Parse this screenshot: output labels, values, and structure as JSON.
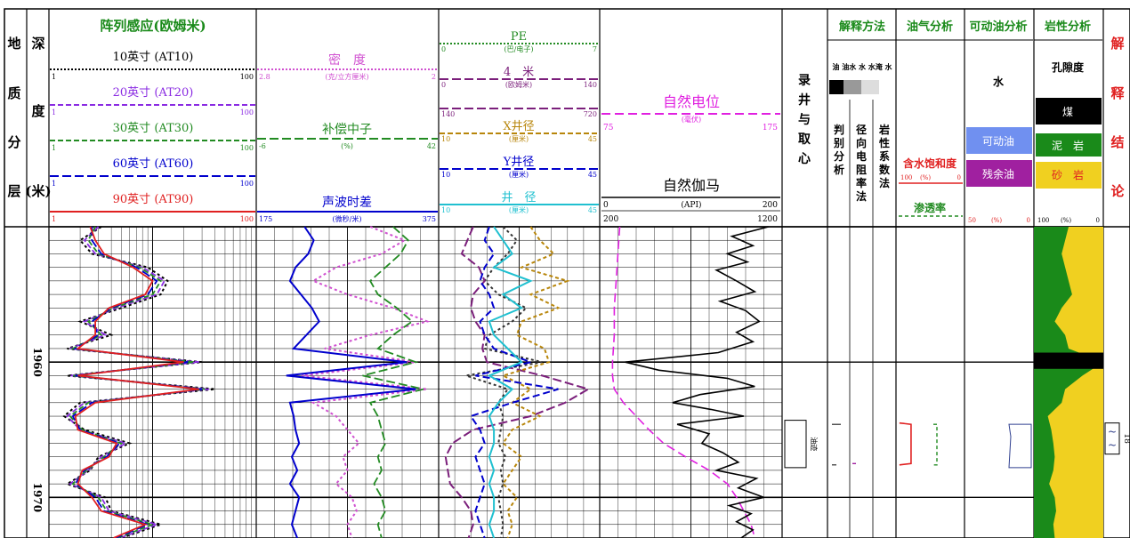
{
  "colors": {
    "at10": "#000000",
    "at20": "#8a2be2",
    "at30": "#228b22",
    "at60": "#0000cd",
    "at90": "#e02020",
    "density": "#d050d0",
    "neutron": "#228b22",
    "sonic": "#0000cd",
    "pe": "#228b22",
    "rt4": "#7b1f7b",
    "calx": "#b8860b",
    "caly": "#0000cd",
    "bit": "#20c0d0",
    "sp": "#e020e0",
    "gr": "#000000",
    "sand": "#f0d020",
    "shale": "#1a8a1a",
    "coal": "#000000",
    "movable": "#4060e0",
    "residual": "#a020a0",
    "water_sat": "#e02020"
  },
  "depth_track": {
    "header_geo": [
      "地",
      "质",
      "分",
      "层"
    ],
    "header_depth": [
      "深",
      "度",
      "(米)"
    ],
    "depth_labels": [
      "1960",
      "1970"
    ]
  },
  "headers": {
    "induction_title": "阵列感应(欧姆米)",
    "curves": [
      {
        "label": "10英寸 (AT10)",
        "min": "1",
        "max": "100",
        "color_key": "at10",
        "dash": "2,2"
      },
      {
        "label": "20英寸 (AT20)",
        "min": "1",
        "max": "100",
        "color_key": "at20",
        "dash": "6,3"
      },
      {
        "label": "30英寸 (AT30)",
        "min": "1",
        "max": "100",
        "color_key": "at30",
        "dash": "6,3"
      },
      {
        "label": "60英寸 (AT60)",
        "min": "1",
        "max": "100",
        "color_key": "at60",
        "dash": "10,4"
      },
      {
        "label": "90英寸 (AT90)",
        "min": "1",
        "max": "100",
        "color_key": "at90",
        "dash": ""
      }
    ],
    "porosity": [
      {
        "label": "密　度",
        "unit": "(克/立方厘米)",
        "min": "2.8",
        "max": "2",
        "color_key": "density",
        "dash": "2,2"
      },
      {
        "label": "补偿中子",
        "unit": "(%)",
        "min": "-6",
        "max": "42",
        "color_key": "neutron",
        "dash": "10,4"
      },
      {
        "label": "声波时差",
        "unit": "(微秒/米)",
        "min": "175",
        "max": "375",
        "color_key": "sonic",
        "dash": ""
      }
    ],
    "mid": [
      {
        "label": "PE",
        "unit": "(巴/电子)",
        "min": "0",
        "max": "7",
        "color_key": "pe",
        "dash": "2,2"
      },
      {
        "label": "4　米",
        "unit": "(欧姆米)",
        "min": "0",
        "max": "140",
        "color_key": "rt4",
        "dash": "10,4"
      },
      {
        "label": "",
        "unit": "",
        "min": "140",
        "max": "720",
        "color_key": "rt4",
        "dash": "10,4"
      },
      {
        "label": "X井径",
        "unit": "(厘米)",
        "min": "10",
        "max": "45",
        "color_key": "calx",
        "dash": "6,3"
      },
      {
        "label": "Y井径",
        "unit": "(厘米)",
        "min": "10",
        "max": "45",
        "color_key": "caly",
        "dash": "10,4"
      },
      {
        "label": "井　径",
        "unit": "(厘米)",
        "min": "10",
        "max": "45",
        "color_key": "bit",
        "dash": ""
      }
    ],
    "sp": {
      "label": "自然电位",
      "unit": "(毫伏)",
      "min": "75",
      "max": "175"
    },
    "gr": {
      "label": "自然伽马",
      "unit": "(API)",
      "min": "0",
      "max": "200",
      "min2": "200",
      "max2": "1200"
    },
    "core": "录井与取心",
    "interp_method": "解释方法",
    "interp_fluids": "油 油水 水 水淹 水",
    "interp_cols": [
      "判别分析",
      "径向电阻率法",
      "岩性系数法"
    ],
    "oil_gas": "油气分析",
    "water_sat": "含水饱和度",
    "water_sat_scale": [
      "100",
      "(%)",
      "0"
    ],
    "perm": "渗透率",
    "movable_title": "可动油分析",
    "movable_water": "水",
    "movable_oil": "可动油",
    "residual_oil": "残余油",
    "movable_scale": [
      "50",
      "(%)",
      "0"
    ],
    "lith_title": "岩性分析",
    "porosity_label": "孔隙度",
    "coal": "煤",
    "shale": "泥　岩",
    "sand": "砂　岩",
    "lith_scale": [
      "100",
      "(%)",
      "0"
    ],
    "result_title": [
      "解",
      "释",
      "结",
      "论"
    ],
    "oil_show": "油迹",
    "result_number": "18"
  },
  "chart_data": {
    "type": "line",
    "x_label": "深度 (米)",
    "depth_range": [
      1950,
      1973
    ],
    "series": [
      {
        "name": "10英寸 (AT10)",
        "unit": "欧姆米",
        "log": true,
        "depth": [
          1950,
          1951,
          1952,
          1953,
          1954,
          1955,
          1956,
          1957,
          1958,
          1959,
          1960,
          1961,
          1962,
          1963,
          1964,
          1965,
          1966,
          1967,
          1968,
          1969,
          1970,
          1971,
          1972,
          1973
        ],
        "x": [
          3.2,
          2.0,
          2.6,
          9.0,
          14.0,
          12.0,
          5.0,
          2.0,
          4.0,
          1.5,
          30.0,
          1.5,
          40.0,
          2.0,
          1.4,
          2.2,
          6.0,
          3.0,
          2.5,
          1.5,
          3.5,
          4.0,
          12.0,
          5.0
        ]
      },
      {
        "name": "20英寸 (AT20)",
        "unit": "欧姆米",
        "log": true,
        "depth": [
          1950,
          1951,
          1952,
          1953,
          1954,
          1955,
          1956,
          1957,
          1958,
          1959,
          1960,
          1961,
          1962,
          1963,
          1964,
          1965,
          1966,
          1967,
          1968,
          1969,
          1970,
          1971,
          1972,
          1973
        ],
        "x": [
          3.0,
          2.2,
          2.8,
          8.0,
          13.0,
          11.0,
          4.5,
          2.2,
          3.5,
          1.6,
          28.0,
          1.6,
          35.0,
          2.2,
          1.5,
          2.0,
          5.5,
          3.2,
          2.4,
          1.6,
          3.2,
          3.8,
          11.0,
          4.8
        ]
      },
      {
        "name": "30英寸 (AT30)",
        "unit": "欧姆米",
        "log": true,
        "depth": [
          1950,
          1951,
          1952,
          1953,
          1954,
          1955,
          1956,
          1957,
          1958,
          1959,
          1960,
          1961,
          1962,
          1963,
          1964,
          1965,
          1966,
          1967,
          1968,
          1969,
          1970,
          1971,
          1972,
          1973
        ],
        "x": [
          2.8,
          2.4,
          3.0,
          7.5,
          12.0,
          10.0,
          4.2,
          2.4,
          3.2,
          1.7,
          25.0,
          1.7,
          32.0,
          2.4,
          1.6,
          2.1,
          5.0,
          3.4,
          2.3,
          1.7,
          3.0,
          3.6,
          10.0,
          4.6
        ]
      },
      {
        "name": "60英寸 (AT60)",
        "unit": "欧姆米",
        "log": true,
        "depth": [
          1950,
          1951,
          1952,
          1953,
          1954,
          1955,
          1956,
          1957,
          1958,
          1959,
          1960,
          1961,
          1962,
          1963,
          1964,
          1965,
          1966,
          1967,
          1968,
          1969,
          1970,
          1971,
          1972,
          1973
        ],
        "x": [
          2.6,
          2.6,
          3.2,
          7.0,
          11.0,
          9.0,
          4.0,
          2.6,
          3.0,
          1.8,
          22.0,
          1.8,
          30.0,
          2.6,
          1.7,
          2.0,
          4.8,
          3.6,
          2.2,
          1.8,
          2.8,
          3.4,
          9.0,
          4.4
        ]
      },
      {
        "name": "90英寸 (AT90)",
        "unit": "欧姆米",
        "log": true,
        "depth": [
          1950,
          1951,
          1952,
          1953,
          1954,
          1955,
          1956,
          1957,
          1958,
          1959,
          1960,
          1961,
          1962,
          1963,
          1964,
          1965,
          1966,
          1967,
          1968,
          1969,
          1970,
          1971,
          1972,
          1973
        ],
        "x": [
          2.5,
          2.8,
          3.4,
          6.5,
          10.0,
          8.5,
          3.8,
          2.8,
          2.8,
          1.9,
          20.0,
          1.9,
          28.0,
          2.8,
          1.8,
          1.9,
          4.5,
          3.8,
          2.1,
          1.9,
          2.6,
          3.2,
          8.5,
          4.2
        ]
      },
      {
        "name": "密度",
        "unit": "克/立方厘米",
        "depth": [
          1950,
          1951,
          1952,
          1953,
          1954,
          1955,
          1956,
          1957,
          1958,
          1959,
          1960,
          1961,
          1962,
          1963,
          1964,
          1965,
          1966,
          1967,
          1968,
          1969,
          1970,
          1971,
          1972,
          1973
        ],
        "x": [
          2.3,
          2.15,
          2.25,
          2.45,
          2.55,
          2.4,
          2.2,
          2.05,
          2.3,
          2.5,
          2.1,
          2.6,
          2.05,
          2.55,
          2.45,
          2.4,
          2.35,
          2.42,
          2.4,
          2.45,
          2.38,
          2.36,
          2.4,
          2.38
        ]
      },
      {
        "name": "补偿中子",
        "unit": "%",
        "depth": [
          1950,
          1951,
          1952,
          1953,
          1954,
          1955,
          1956,
          1957,
          1958,
          1959,
          1960,
          1961,
          1962,
          1963,
          1964,
          1965,
          1966,
          1967,
          1968,
          1969,
          1970,
          1971,
          1972,
          1973
        ],
        "x": [
          30,
          34,
          32,
          28,
          24,
          26,
          31,
          35,
          30,
          26,
          36,
          22,
          38,
          24,
          26,
          27,
          28,
          26,
          27,
          25,
          27,
          28,
          26,
          27
        ]
      },
      {
        "name": "声波时差",
        "unit": "微秒/米",
        "depth": [
          1950,
          1951,
          1952,
          1953,
          1954,
          1955,
          1956,
          1957,
          1958,
          1959,
          1960,
          1961,
          1962,
          1963,
          1964,
          1965,
          1966,
          1967,
          1968,
          1969,
          1970,
          1971,
          1972,
          1973
        ],
        "x": [
          228,
          238,
          232,
          218,
          212,
          224,
          236,
          244,
          230,
          216,
          340,
          208,
          350,
          212,
          216,
          218,
          222,
          214,
          220,
          212,
          222,
          218,
          214,
          220
        ]
      },
      {
        "name": "PE",
        "unit": "巴/电子",
        "depth": [
          1950,
          1951,
          1952,
          1953,
          1954,
          1955,
          1956,
          1957,
          1958,
          1959,
          1960,
          1961,
          1962,
          1963,
          1964,
          1965,
          1966,
          1967,
          1968,
          1969,
          1970,
          1971,
          1972,
          1973
        ],
        "x": [
          2.8,
          3.4,
          3.0,
          2.4,
          2.0,
          2.6,
          3.8,
          3.2,
          2.2,
          2.0,
          4.5,
          1.2,
          3.0,
          2.6,
          2.8,
          2.7,
          2.6,
          2.9,
          2.7,
          2.8,
          2.6,
          2.7,
          2.8,
          2.7
        ]
      },
      {
        "name": "4　米",
        "unit": "欧姆米",
        "depth": [
          1950,
          1951,
          1952,
          1953,
          1954,
          1955,
          1956,
          1957,
          1958,
          1959,
          1960,
          1961,
          1962,
          1963,
          1964,
          1965,
          1966,
          1967,
          1968,
          1969,
          1970,
          1971,
          1972,
          1973
        ],
        "x": [
          30,
          25,
          20,
          35,
          40,
          30,
          28,
          32,
          40,
          38,
          42,
          90,
          130,
          110,
          80,
          30,
          12,
          6,
          8,
          10,
          20,
          28,
          30,
          26
        ]
      },
      {
        "name": "X井径",
        "unit": "厘米",
        "depth": [
          1950,
          1951,
          1952,
          1953,
          1954,
          1955,
          1956,
          1957,
          1958,
          1959,
          1960,
          1961,
          1962,
          1963,
          1964,
          1965,
          1966,
          1967,
          1968,
          1969,
          1970,
          1971,
          1972,
          1973
        ],
        "x": [
          30,
          32,
          35,
          28,
          38,
          30,
          36,
          28,
          27,
          33,
          34,
          24,
          30,
          26,
          32,
          26,
          24,
          28,
          26,
          24,
          27,
          25,
          26,
          25
        ]
      },
      {
        "name": "Y井径",
        "unit": "厘米",
        "depth": [
          1950,
          1951,
          1952,
          1953,
          1954,
          1955,
          1956,
          1957,
          1958,
          1959,
          1960,
          1961,
          1962,
          1963,
          1964,
          1965,
          1966,
          1967,
          1968,
          1969,
          1970,
          1971,
          1972,
          1973
        ],
        "x": [
          21,
          20,
          22,
          20,
          19,
          21,
          22,
          19,
          20,
          22,
          30,
          18,
          36,
          26,
          17,
          19,
          20,
          18,
          19,
          20,
          19,
          18,
          19,
          20
        ]
      },
      {
        "name": "井　径",
        "unit": "厘米",
        "depth": [
          1950,
          1951,
          1952,
          1953,
          1954,
          1955,
          1956,
          1957,
          1958,
          1959,
          1960,
          1961,
          1962,
          1963,
          1964,
          1965,
          1966,
          1967,
          1968,
          1969,
          1970,
          1971,
          1972,
          1973
        ],
        "x": [
          22,
          24,
          26,
          22,
          30,
          24,
          28,
          21,
          22,
          25,
          28,
          21,
          26,
          23,
          21,
          22,
          22,
          21,
          22,
          21,
          22,
          22,
          21,
          22
        ]
      },
      {
        "name": "自然电位",
        "unit": "毫伏",
        "depth": [
          1950,
          1952,
          1954,
          1956,
          1958,
          1960,
          1961,
          1962,
          1963,
          1964,
          1965,
          1966,
          1967,
          1968,
          1969,
          1970,
          1971,
          1972,
          1973
        ],
        "x": [
          86,
          85,
          84,
          83,
          83,
          82,
          82,
          83,
          88,
          95,
          102,
          110,
          122,
          135,
          145,
          150,
          154,
          158,
          160
        ]
      },
      {
        "name": "自然伽马",
        "unit": "API",
        "depth": [
          1950,
          1950.7,
          1951.4,
          1952,
          1952.6,
          1953.2,
          1954,
          1954.8,
          1955.5,
          1956.2,
          1957,
          1957.8,
          1958.5,
          1959.3,
          1960,
          1960.6,
          1961.2,
          1961.8,
          1962.4,
          1963,
          1963.5,
          1964,
          1964.6,
          1965.3,
          1966,
          1966.7,
          1967.4,
          1968,
          1968.6,
          1969.3,
          1970,
          1970.6,
          1971.2,
          1971.8,
          1972.4,
          1973
        ],
        "x": [
          185,
          145,
          168,
          140,
          162,
          128,
          150,
          170,
          132,
          160,
          175,
          150,
          168,
          130,
          28,
          65,
          140,
          170,
          110,
          80,
          122,
          158,
          85,
          120,
          112,
          135,
          152,
          128,
          172,
          152,
          180,
          142,
          166,
          150,
          168,
          155
        ]
      }
    ],
    "lithology_sand_percent": {
      "depth": [
        1950,
        1951,
        1952,
        1953,
        1954,
        1955,
        1956,
        1957,
        1958,
        1959,
        1960,
        1961,
        1962,
        1963,
        1964,
        1965,
        1966,
        1967,
        1968,
        1969,
        1970,
        1971,
        1972,
        1973
      ],
      "x": [
        50,
        55,
        60,
        55,
        50,
        45,
        60,
        70,
        55,
        50,
        0,
        30,
        55,
        60,
        80,
        75,
        72,
        70,
        72,
        78,
        70,
        68,
        72,
        70
      ]
    },
    "coal_interval": [
      1959.3,
      1960.5
    ],
    "water_saturation_percent": {
      "depth": [
        1964.5,
        1964.6,
        1967.5,
        1967.6
      ],
      "x": [
        95,
        78,
        78,
        95
      ]
    },
    "oil_show_interval": [
      1964.3,
      1967.8
    ],
    "result_interval": [
      1964.5,
      1966.8
    ],
    "grid": true
  }
}
